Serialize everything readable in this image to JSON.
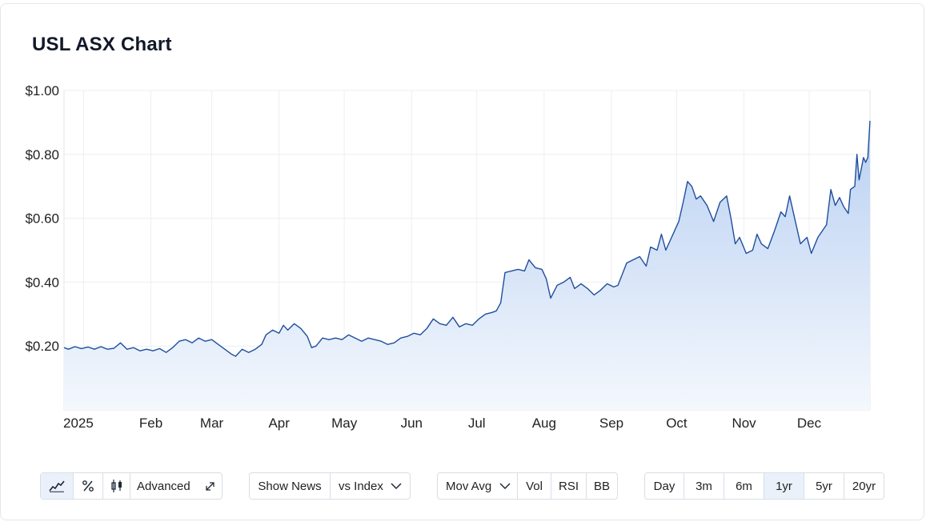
{
  "title": "USL ASX Chart",
  "chart_data": {
    "type": "area",
    "title": "USL ASX Chart",
    "y_tick_labels": [
      "$1.00",
      "$0.80",
      "$0.60",
      "$0.40",
      "$0.20"
    ],
    "y_tick_values": [
      1.0,
      0.8,
      0.6,
      0.4,
      0.2
    ],
    "x_tick_labels": [
      "2025",
      "Feb",
      "Mar",
      "Apr",
      "May",
      "Jun",
      "Jul",
      "Aug",
      "Sep",
      "Oct",
      "Nov",
      "Dec"
    ],
    "x_tick_dates": [
      "2025-01-01",
      "2025-02-01",
      "2025-03-01",
      "2025-04-01",
      "2025-05-01",
      "2025-06-01",
      "2025-07-01",
      "2025-08-01",
      "2025-09-01",
      "2025-10-01",
      "2025-11-01",
      "2025-12-01"
    ],
    "ylim": [
      0.0,
      1.0
    ],
    "xlim": [
      "2024-12-23",
      "2025-12-29"
    ],
    "grid": true,
    "series": [
      {
        "color": "#1f4e9c",
        "fill_top": "#b9d0f2",
        "fill_bottom": "#f4f8fd",
        "points": [
          [
            "2024-12-23",
            0.195
          ],
          [
            "2024-12-25",
            0.19
          ],
          [
            "2024-12-28",
            0.198
          ],
          [
            "2024-12-31",
            0.192
          ],
          [
            "2025-01-03",
            0.197
          ],
          [
            "2025-01-06",
            0.19
          ],
          [
            "2025-01-09",
            0.198
          ],
          [
            "2025-01-12",
            0.19
          ],
          [
            "2025-01-15",
            0.193
          ],
          [
            "2025-01-18",
            0.21
          ],
          [
            "2025-01-21",
            0.19
          ],
          [
            "2025-01-24",
            0.195
          ],
          [
            "2025-01-27",
            0.185
          ],
          [
            "2025-01-30",
            0.19
          ],
          [
            "2025-02-02",
            0.185
          ],
          [
            "2025-02-05",
            0.192
          ],
          [
            "2025-02-08",
            0.18
          ],
          [
            "2025-02-11",
            0.195
          ],
          [
            "2025-02-14",
            0.215
          ],
          [
            "2025-02-17",
            0.22
          ],
          [
            "2025-02-20",
            0.21
          ],
          [
            "2025-02-23",
            0.225
          ],
          [
            "2025-02-26",
            0.215
          ],
          [
            "2025-03-01",
            0.22
          ],
          [
            "2025-03-04",
            0.205
          ],
          [
            "2025-03-07",
            0.19
          ],
          [
            "2025-03-10",
            0.175
          ],
          [
            "2025-03-12",
            0.168
          ],
          [
            "2025-03-15",
            0.19
          ],
          [
            "2025-03-18",
            0.18
          ],
          [
            "2025-03-21",
            0.19
          ],
          [
            "2025-03-24",
            0.205
          ],
          [
            "2025-03-26",
            0.235
          ],
          [
            "2025-03-29",
            0.25
          ],
          [
            "2025-04-01",
            0.24
          ],
          [
            "2025-04-03",
            0.265
          ],
          [
            "2025-04-05",
            0.25
          ],
          [
            "2025-04-08",
            0.27
          ],
          [
            "2025-04-11",
            0.255
          ],
          [
            "2025-04-14",
            0.23
          ],
          [
            "2025-04-16",
            0.195
          ],
          [
            "2025-04-18",
            0.2
          ],
          [
            "2025-04-21",
            0.225
          ],
          [
            "2025-04-24",
            0.22
          ],
          [
            "2025-04-27",
            0.225
          ],
          [
            "2025-04-30",
            0.22
          ],
          [
            "2025-05-03",
            0.235
          ],
          [
            "2025-05-06",
            0.225
          ],
          [
            "2025-05-09",
            0.215
          ],
          [
            "2025-05-12",
            0.225
          ],
          [
            "2025-05-15",
            0.22
          ],
          [
            "2025-05-18",
            0.215
          ],
          [
            "2025-05-21",
            0.205
          ],
          [
            "2025-05-24",
            0.21
          ],
          [
            "2025-05-27",
            0.225
          ],
          [
            "2025-05-30",
            0.23
          ],
          [
            "2025-06-02",
            0.24
          ],
          [
            "2025-06-05",
            0.235
          ],
          [
            "2025-06-08",
            0.255
          ],
          [
            "2025-06-11",
            0.285
          ],
          [
            "2025-06-14",
            0.27
          ],
          [
            "2025-06-17",
            0.265
          ],
          [
            "2025-06-20",
            0.29
          ],
          [
            "2025-06-23",
            0.26
          ],
          [
            "2025-06-26",
            0.27
          ],
          [
            "2025-06-29",
            0.265
          ],
          [
            "2025-07-02",
            0.285
          ],
          [
            "2025-07-05",
            0.3
          ],
          [
            "2025-07-08",
            0.305
          ],
          [
            "2025-07-10",
            0.31
          ],
          [
            "2025-07-12",
            0.335
          ],
          [
            "2025-07-14",
            0.43
          ],
          [
            "2025-07-17",
            0.435
          ],
          [
            "2025-07-20",
            0.44
          ],
          [
            "2025-07-23",
            0.435
          ],
          [
            "2025-07-25",
            0.47
          ],
          [
            "2025-07-28",
            0.445
          ],
          [
            "2025-07-31",
            0.44
          ],
          [
            "2025-08-02",
            0.41
          ],
          [
            "2025-08-04",
            0.35
          ],
          [
            "2025-08-07",
            0.39
          ],
          [
            "2025-08-10",
            0.4
          ],
          [
            "2025-08-13",
            0.415
          ],
          [
            "2025-08-15",
            0.38
          ],
          [
            "2025-08-18",
            0.395
          ],
          [
            "2025-08-21",
            0.38
          ],
          [
            "2025-08-24",
            0.36
          ],
          [
            "2025-08-27",
            0.375
          ],
          [
            "2025-08-30",
            0.395
          ],
          [
            "2025-09-02",
            0.385
          ],
          [
            "2025-09-04",
            0.39
          ],
          [
            "2025-09-06",
            0.425
          ],
          [
            "2025-09-08",
            0.46
          ],
          [
            "2025-09-11",
            0.47
          ],
          [
            "2025-09-14",
            0.48
          ],
          [
            "2025-09-17",
            0.45
          ],
          [
            "2025-09-19",
            0.51
          ],
          [
            "2025-09-22",
            0.5
          ],
          [
            "2025-09-24",
            0.55
          ],
          [
            "2025-09-26",
            0.5
          ],
          [
            "2025-09-28",
            0.53
          ],
          [
            "2025-09-30",
            0.56
          ],
          [
            "2025-10-02",
            0.59
          ],
          [
            "2025-10-04",
            0.65
          ],
          [
            "2025-10-06",
            0.715
          ],
          [
            "2025-10-08",
            0.7
          ],
          [
            "2025-10-10",
            0.66
          ],
          [
            "2025-10-12",
            0.67
          ],
          [
            "2025-10-15",
            0.64
          ],
          [
            "2025-10-18",
            0.59
          ],
          [
            "2025-10-21",
            0.65
          ],
          [
            "2025-10-24",
            0.67
          ],
          [
            "2025-10-26",
            0.6
          ],
          [
            "2025-10-28",
            0.52
          ],
          [
            "2025-10-30",
            0.54
          ],
          [
            "2025-11-02",
            0.49
          ],
          [
            "2025-11-05",
            0.5
          ],
          [
            "2025-11-07",
            0.55
          ],
          [
            "2025-11-09",
            0.52
          ],
          [
            "2025-11-12",
            0.505
          ],
          [
            "2025-11-15",
            0.56
          ],
          [
            "2025-11-18",
            0.62
          ],
          [
            "2025-11-20",
            0.605
          ],
          [
            "2025-11-22",
            0.67
          ],
          [
            "2025-11-25",
            0.58
          ],
          [
            "2025-11-27",
            0.52
          ],
          [
            "2025-11-30",
            0.54
          ],
          [
            "2025-12-02",
            0.49
          ],
          [
            "2025-12-05",
            0.54
          ],
          [
            "2025-12-07",
            0.56
          ],
          [
            "2025-12-09",
            0.58
          ],
          [
            "2025-12-11",
            0.69
          ],
          [
            "2025-12-13",
            0.64
          ],
          [
            "2025-12-15",
            0.665
          ],
          [
            "2025-12-17",
            0.635
          ],
          [
            "2025-12-19",
            0.615
          ],
          [
            "2025-12-20",
            0.69
          ],
          [
            "2025-12-22",
            0.7
          ],
          [
            "2025-12-23",
            0.8
          ],
          [
            "2025-12-24",
            0.72
          ],
          [
            "2025-12-26",
            0.79
          ],
          [
            "2025-12-27",
            0.775
          ],
          [
            "2025-12-28",
            0.79
          ],
          [
            "2025-12-29",
            0.905
          ]
        ]
      }
    ]
  },
  "toolbar": {
    "chart_types": [
      {
        "name": "line-chart-icon",
        "active": true
      },
      {
        "name": "percent-icon",
        "active": false
      },
      {
        "name": "candlestick-icon",
        "active": false
      }
    ],
    "advanced_label": "Advanced",
    "expand_icon": "expand-icon",
    "show_news_label": "Show News",
    "vs_index_label": "vs Index",
    "mov_avg_label": "Mov Avg",
    "vol_label": "Vol",
    "rsi_label": "RSI",
    "bb_label": "BB",
    "ranges": [
      {
        "label": "Day",
        "active": false
      },
      {
        "label": "3m",
        "active": false
      },
      {
        "label": "6m",
        "active": false
      },
      {
        "label": "1yr",
        "active": true
      },
      {
        "label": "5yr",
        "active": false
      },
      {
        "label": "20yr",
        "active": false
      }
    ]
  }
}
